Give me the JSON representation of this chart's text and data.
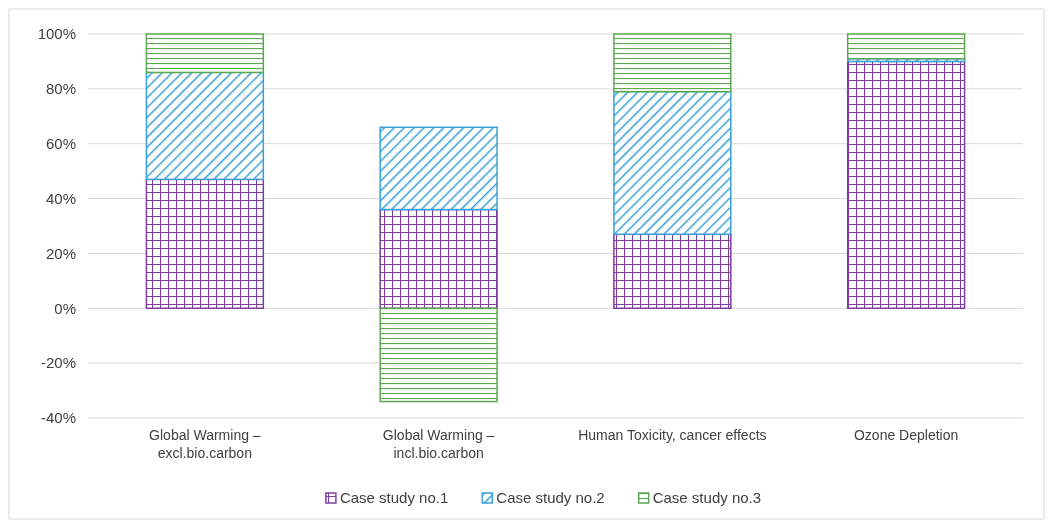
{
  "chart_data": {
    "type": "bar",
    "stacked": true,
    "categories": [
      "Global Warming – excl.bio.carbon",
      "Global Warming – incl.bio.carbon",
      "Human Toxicity, cancer effects",
      "Ozone Depletion"
    ],
    "series": [
      {
        "name": "Case study no.1",
        "color": "#7b3f9e",
        "values": [
          47,
          36,
          27,
          90
        ]
      },
      {
        "name": "Case study no.2",
        "color": "#3a9fd8",
        "values": [
          39,
          30,
          52,
          1
        ]
      },
      {
        "name": "Case study no.3",
        "color": "#5aa84f",
        "values": [
          14,
          -34,
          21,
          9
        ]
      }
    ],
    "ylim": [
      -40,
      100
    ],
    "yticks": [
      {
        "value": -40,
        "label": "-40%"
      },
      {
        "value": -20,
        "label": "-20%"
      },
      {
        "value": 0,
        "label": "0%"
      },
      {
        "value": 20,
        "label": "20%"
      },
      {
        "value": 40,
        "label": "40%"
      },
      {
        "value": 60,
        "label": "60%"
      },
      {
        "value": 80,
        "label": "80%"
      },
      {
        "value": 100,
        "label": "100%"
      }
    ],
    "grid": "y",
    "legend": "bottom"
  }
}
